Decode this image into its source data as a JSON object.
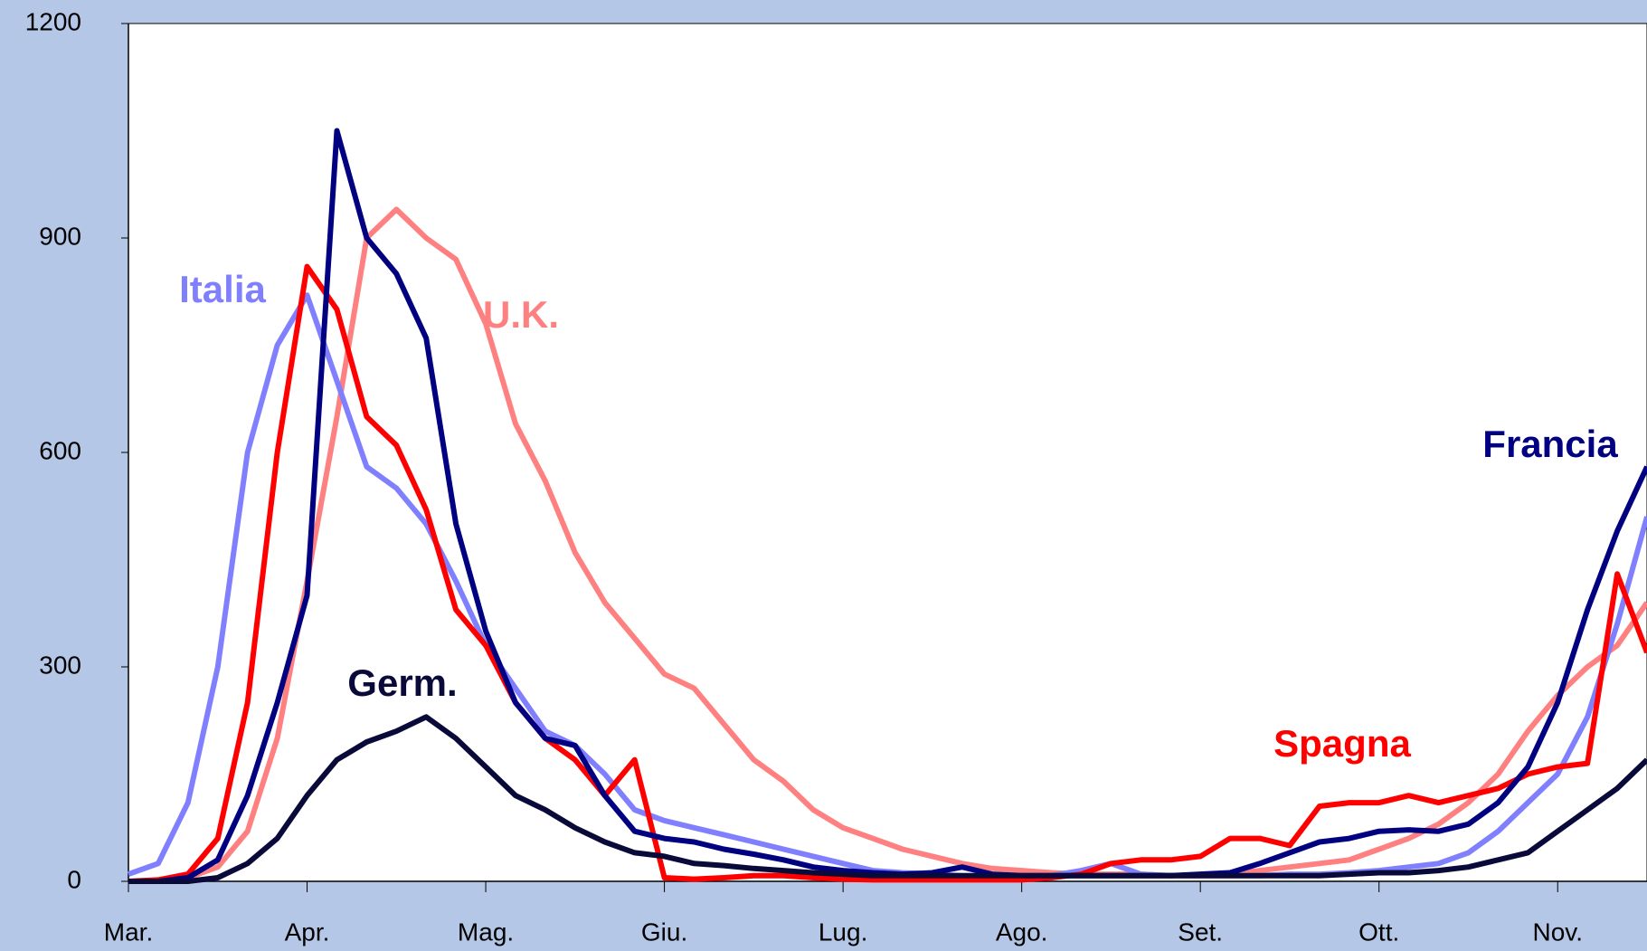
{
  "chart_data": {
    "type": "line",
    "categories": [
      "Mar.",
      null,
      null,
      null,
      null,
      null,
      "Apr.",
      null,
      null,
      null,
      null,
      null,
      "Mag.",
      null,
      null,
      null,
      null,
      null,
      "Giu.",
      null,
      null,
      null,
      null,
      null,
      "Lug.",
      null,
      null,
      null,
      null,
      null,
      "Ago.",
      null,
      null,
      null,
      null,
      null,
      "Set.",
      null,
      null,
      null,
      null,
      null,
      "Ott.",
      null,
      null,
      null,
      null,
      null,
      "Nov.",
      null,
      null,
      null
    ],
    "ylim": [
      0,
      1200
    ],
    "yticks": [
      0,
      300,
      600,
      900,
      1200
    ],
    "series": [
      {
        "name": "U.K.",
        "color": "#ff8080",
        "values": [
          0,
          0,
          5,
          20,
          70,
          200,
          420,
          650,
          900,
          940,
          900,
          870,
          780,
          640,
          560,
          460,
          390,
          340,
          290,
          270,
          220,
          170,
          140,
          100,
          75,
          60,
          45,
          35,
          25,
          18,
          15,
          12,
          10,
          10,
          10,
          8,
          8,
          10,
          15,
          20,
          25,
          30,
          45,
          60,
          80,
          110,
          150,
          210,
          260,
          300,
          330,
          390
        ]
      },
      {
        "name": "Italia",
        "color": "#8080ff",
        "values": [
          10,
          25,
          110,
          300,
          600,
          750,
          820,
          700,
          580,
          550,
          500,
          420,
          330,
          270,
          210,
          190,
          150,
          100,
          85,
          75,
          65,
          55,
          45,
          35,
          25,
          15,
          12,
          10,
          8,
          7,
          6,
          8,
          15,
          25,
          10,
          8,
          8,
          8,
          8,
          10,
          10,
          12,
          15,
          20,
          25,
          40,
          70,
          110,
          150,
          230,
          360,
          510
        ]
      },
      {
        "name": "Spagna",
        "color": "#ff0000",
        "values": [
          0,
          2,
          10,
          60,
          250,
          600,
          860,
          800,
          650,
          610,
          520,
          380,
          330,
          250,
          200,
          170,
          120,
          170,
          5,
          3,
          5,
          8,
          8,
          5,
          3,
          2,
          2,
          2,
          2,
          2,
          2,
          5,
          10,
          25,
          30,
          30,
          35,
          60,
          60,
          50,
          105,
          110,
          110,
          120,
          110,
          120,
          130,
          150,
          160,
          165,
          430,
          320
        ]
      },
      {
        "name": "Francia",
        "color": "#000080",
        "values": [
          0,
          0,
          5,
          30,
          120,
          250,
          400,
          1050,
          900,
          850,
          760,
          500,
          350,
          250,
          200,
          190,
          120,
          70,
          60,
          55,
          45,
          38,
          30,
          20,
          15,
          12,
          10,
          12,
          20,
          10,
          8,
          8,
          8,
          8,
          8,
          8,
          10,
          12,
          25,
          40,
          55,
          60,
          70,
          72,
          70,
          80,
          110,
          160,
          250,
          380,
          490,
          580
        ]
      },
      {
        "name": "Germ.",
        "color": "#0a0a3a",
        "values": [
          0,
          0,
          0,
          5,
          25,
          60,
          120,
          170,
          195,
          210,
          230,
          200,
          160,
          120,
          100,
          75,
          55,
          40,
          35,
          25,
          22,
          18,
          15,
          12,
          10,
          8,
          8,
          8,
          8,
          8,
          8,
          8,
          8,
          8,
          8,
          8,
          8,
          8,
          8,
          8,
          8,
          10,
          12,
          12,
          15,
          20,
          30,
          40,
          70,
          100,
          130,
          170
        ]
      }
    ]
  }
}
